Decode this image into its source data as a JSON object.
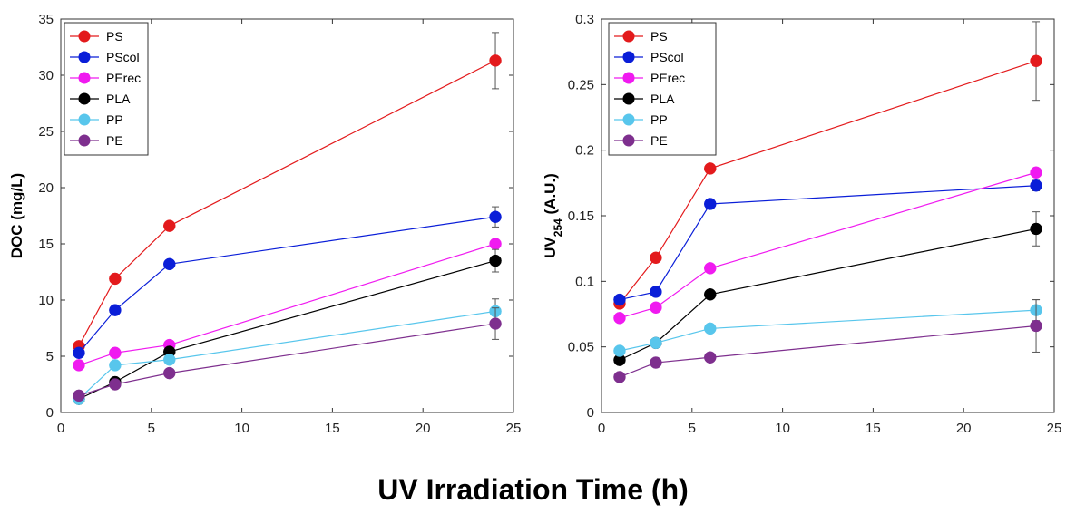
{
  "shared_xlabel": "UV Irradiation Time (h)",
  "chart_data": [
    {
      "type": "line",
      "ylabel": "DOC (mg/L)",
      "xlim": [
        0,
        25
      ],
      "ylim": [
        0,
        35
      ],
      "xticks": [
        0,
        5,
        10,
        15,
        20,
        25
      ],
      "yticks": [
        0,
        5,
        10,
        15,
        20,
        25,
        30,
        35
      ],
      "legend_position": "top-left",
      "grid": false,
      "x": [
        1,
        3,
        6,
        24
      ],
      "series": [
        {
          "name": "PS",
          "color": "#e31a1c",
          "values": [
            5.9,
            11.9,
            16.6,
            31.3
          ],
          "errors": [
            null,
            null,
            null,
            2.5
          ]
        },
        {
          "name": "PScol",
          "color": "#0a1ed8",
          "values": [
            5.3,
            9.1,
            13.2,
            17.4
          ],
          "errors": [
            null,
            null,
            null,
            0.9
          ]
        },
        {
          "name": "PErec",
          "color": "#f01af0",
          "values": [
            4.2,
            5.3,
            6.0,
            15.0
          ],
          "errors": [
            null,
            null,
            null,
            null
          ]
        },
        {
          "name": "PLA",
          "color": "#000000",
          "values": [
            1.2,
            2.7,
            5.4,
            13.5
          ],
          "errors": [
            null,
            null,
            null,
            1.0
          ]
        },
        {
          "name": "PP",
          "color": "#58c6ec",
          "values": [
            1.2,
            4.2,
            4.7,
            9.0
          ],
          "errors": [
            null,
            null,
            null,
            1.1
          ]
        },
        {
          "name": "PE",
          "color": "#7e2f8e",
          "values": [
            1.5,
            2.5,
            3.5,
            7.9
          ],
          "errors": [
            null,
            null,
            null,
            1.4
          ]
        }
      ]
    },
    {
      "type": "line",
      "ylabel_main": "UV",
      "ylabel_sub": "254",
      "ylabel_unit": " (A.U.)",
      "xlim": [
        0,
        25
      ],
      "ylim": [
        0,
        0.3
      ],
      "xticks": [
        0,
        5,
        10,
        15,
        20,
        25
      ],
      "yticks": [
        0,
        0.05,
        0.1,
        0.15,
        0.2,
        0.25,
        0.3
      ],
      "legend_position": "top-left",
      "grid": false,
      "x": [
        1,
        3,
        6,
        24
      ],
      "series": [
        {
          "name": "PS",
          "color": "#e31a1c",
          "values": [
            0.083,
            0.118,
            0.186,
            0.268
          ],
          "errors": [
            null,
            null,
            null,
            0.03
          ]
        },
        {
          "name": "PScol",
          "color": "#0a1ed8",
          "values": [
            0.086,
            0.092,
            0.159,
            0.173
          ],
          "errors": [
            null,
            null,
            null,
            0.004
          ]
        },
        {
          "name": "PErec",
          "color": "#f01af0",
          "values": [
            0.072,
            0.08,
            0.11,
            0.183
          ],
          "errors": [
            null,
            null,
            null,
            null
          ]
        },
        {
          "name": "PLA",
          "color": "#000000",
          "values": [
            0.04,
            0.053,
            0.09,
            0.14
          ],
          "errors": [
            null,
            null,
            null,
            0.013
          ]
        },
        {
          "name": "PP",
          "color": "#58c6ec",
          "values": [
            0.047,
            0.053,
            0.064,
            0.078
          ],
          "errors": [
            null,
            null,
            null,
            0.008
          ]
        },
        {
          "name": "PE",
          "color": "#7e2f8e",
          "values": [
            0.027,
            0.038,
            0.042,
            0.066
          ],
          "errors": [
            null,
            null,
            null,
            0.02
          ]
        }
      ]
    }
  ]
}
